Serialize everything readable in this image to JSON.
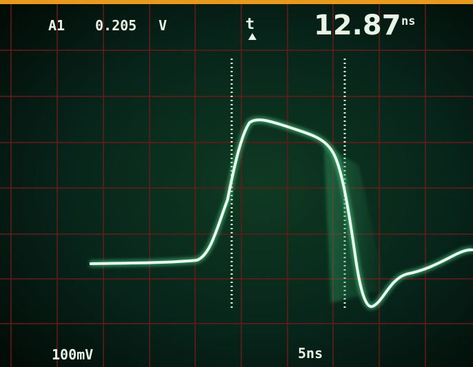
{
  "readout": {
    "channel": "A1",
    "level": "0.205",
    "level_unit": "V",
    "delta_symbol": "t",
    "delta_value": "12.87",
    "delta_unit": "ns"
  },
  "scale": {
    "volts_per_div": "100mV",
    "time_per_div": "5ns"
  }
}
